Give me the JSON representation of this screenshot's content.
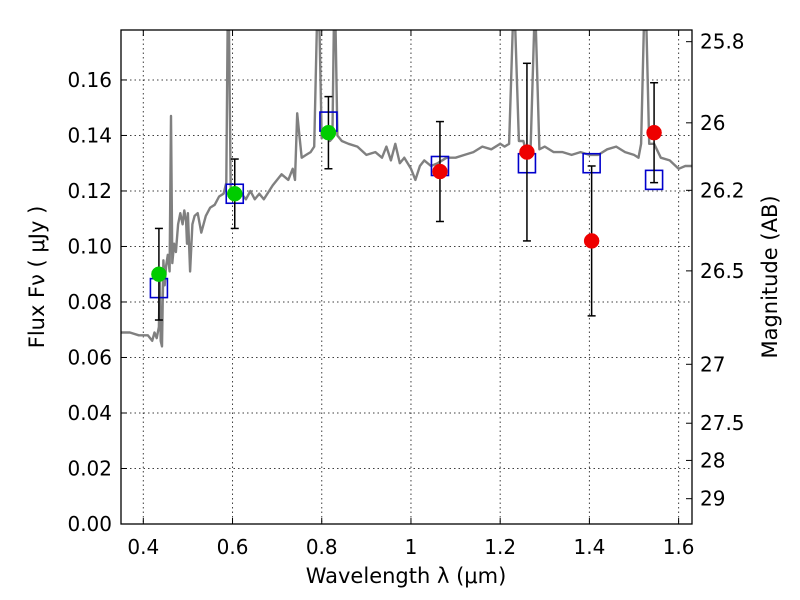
{
  "chart_data": {
    "type": "scatter",
    "x_axis": {
      "label": "Wavelength  λ (μm)",
      "lim": [
        0.35,
        1.63
      ],
      "ticks": [
        0.4,
        0.6,
        0.8,
        1.0,
        1.2,
        1.4,
        1.6
      ],
      "tick_labels": [
        "0.4",
        "0.6",
        "0.8",
        "1",
        "1.2",
        "1.4",
        "1.6"
      ]
    },
    "y_axis": {
      "label": "Flux  Fν  ( μJy )",
      "lim": [
        0.0,
        0.178
      ],
      "ticks": [
        0.0,
        0.02,
        0.04,
        0.06,
        0.08,
        0.1,
        0.12,
        0.14,
        0.16
      ],
      "tick_labels": [
        "0.00",
        "0.02",
        "0.04",
        "0.06",
        "0.08",
        "0.10",
        "0.12",
        "0.14",
        "0.16"
      ]
    },
    "y2_axis": {
      "label": "Magnitude (AB)",
      "ticks": [
        25.8,
        26,
        26.2,
        26.5,
        27,
        27.5,
        28,
        29
      ],
      "tick_labels": [
        "25.8",
        "26",
        "26.2",
        "26.5",
        "27",
        "27.5",
        "28",
        "29"
      ]
    },
    "grid": true,
    "series": [
      {
        "kind": "line",
        "color": "#808080",
        "points": [
          [
            0.35,
            0.069
          ],
          [
            0.37,
            0.069
          ],
          [
            0.39,
            0.068
          ],
          [
            0.41,
            0.068
          ],
          [
            0.42,
            0.066
          ],
          [
            0.425,
            0.069
          ],
          [
            0.43,
            0.067
          ],
          [
            0.435,
            0.071
          ],
          [
            0.437,
            0.09
          ],
          [
            0.439,
            0.066
          ],
          [
            0.442,
            0.064
          ],
          [
            0.445,
            0.095
          ],
          [
            0.448,
            0.086
          ],
          [
            0.451,
            0.093
          ],
          [
            0.455,
            0.097
          ],
          [
            0.459,
            0.091
          ],
          [
            0.462,
            0.147
          ],
          [
            0.465,
            0.094
          ],
          [
            0.469,
            0.101
          ],
          [
            0.473,
            0.098
          ],
          [
            0.478,
            0.108
          ],
          [
            0.483,
            0.112
          ],
          [
            0.488,
            0.108
          ],
          [
            0.492,
            0.113
          ],
          [
            0.496,
            0.109
          ],
          [
            0.498,
            0.101
          ],
          [
            0.5,
            0.112
          ],
          [
            0.505,
            0.091
          ],
          [
            0.51,
            0.108
          ],
          [
            0.515,
            0.111
          ],
          [
            0.522,
            0.112
          ],
          [
            0.53,
            0.105
          ],
          [
            0.54,
            0.111
          ],
          [
            0.55,
            0.114
          ],
          [
            0.56,
            0.115
          ],
          [
            0.57,
            0.118
          ],
          [
            0.58,
            0.119
          ],
          [
            0.586,
            0.123
          ],
          [
            0.589,
            0.178
          ],
          [
            0.592,
            0.178
          ],
          [
            0.596,
            0.121
          ],
          [
            0.602,
            0.119
          ],
          [
            0.61,
            0.121
          ],
          [
            0.62,
            0.119
          ],
          [
            0.63,
            0.117
          ],
          [
            0.64,
            0.12
          ],
          [
            0.65,
            0.117
          ],
          [
            0.66,
            0.119
          ],
          [
            0.67,
            0.117
          ],
          [
            0.69,
            0.122
          ],
          [
            0.71,
            0.126
          ],
          [
            0.725,
            0.124
          ],
          [
            0.735,
            0.128
          ],
          [
            0.74,
            0.124
          ],
          [
            0.745,
            0.148
          ],
          [
            0.75,
            0.14
          ],
          [
            0.755,
            0.132
          ],
          [
            0.765,
            0.133
          ],
          [
            0.775,
            0.134
          ],
          [
            0.783,
            0.136
          ],
          [
            0.789,
            0.178
          ],
          [
            0.795,
            0.178
          ],
          [
            0.8,
            0.139
          ],
          [
            0.808,
            0.141
          ],
          [
            0.818,
            0.138
          ],
          [
            0.824,
            0.139
          ],
          [
            0.827,
            0.178
          ],
          [
            0.831,
            0.178
          ],
          [
            0.835,
            0.14
          ],
          [
            0.845,
            0.138
          ],
          [
            0.86,
            0.137
          ],
          [
            0.88,
            0.136
          ],
          [
            0.9,
            0.133
          ],
          [
            0.92,
            0.134
          ],
          [
            0.935,
            0.132
          ],
          [
            0.945,
            0.136
          ],
          [
            0.955,
            0.131
          ],
          [
            0.965,
            0.137
          ],
          [
            0.975,
            0.13
          ],
          [
            0.985,
            0.132
          ],
          [
            1.0,
            0.128
          ],
          [
            1.01,
            0.124
          ],
          [
            1.02,
            0.129
          ],
          [
            1.03,
            0.131
          ],
          [
            1.045,
            0.129
          ],
          [
            1.06,
            0.13
          ],
          [
            1.08,
            0.132
          ],
          [
            1.1,
            0.132
          ],
          [
            1.12,
            0.133
          ],
          [
            1.14,
            0.134
          ],
          [
            1.16,
            0.136
          ],
          [
            1.18,
            0.135
          ],
          [
            1.2,
            0.137
          ],
          [
            1.21,
            0.136
          ],
          [
            1.22,
            0.137
          ],
          [
            1.228,
            0.178
          ],
          [
            1.234,
            0.178
          ],
          [
            1.242,
            0.138
          ],
          [
            1.252,
            0.138
          ],
          [
            1.258,
            0.134
          ],
          [
            1.268,
            0.134
          ],
          [
            1.276,
            0.178
          ],
          [
            1.28,
            0.178
          ],
          [
            1.288,
            0.135
          ],
          [
            1.3,
            0.136
          ],
          [
            1.32,
            0.134
          ],
          [
            1.34,
            0.134
          ],
          [
            1.36,
            0.133
          ],
          [
            1.38,
            0.134
          ],
          [
            1.4,
            0.133
          ],
          [
            1.42,
            0.133
          ],
          [
            1.44,
            0.135
          ],
          [
            1.46,
            0.136
          ],
          [
            1.48,
            0.134
          ],
          [
            1.5,
            0.133
          ],
          [
            1.51,
            0.132
          ],
          [
            1.516,
            0.137
          ],
          [
            1.522,
            0.178
          ],
          [
            1.528,
            0.178
          ],
          [
            1.534,
            0.137
          ],
          [
            1.545,
            0.137
          ],
          [
            1.56,
            0.132
          ],
          [
            1.58,
            0.131
          ],
          [
            1.6,
            0.128
          ],
          [
            1.615,
            0.129
          ],
          [
            1.63,
            0.129
          ]
        ]
      },
      {
        "kind": "squares",
        "color": "#0000cc",
        "points": [
          [
            0.435,
            0.085
          ],
          [
            0.605,
            0.119
          ],
          [
            0.815,
            0.145
          ],
          [
            1.065,
            0.129
          ],
          [
            1.26,
            0.13
          ],
          [
            1.405,
            0.13
          ],
          [
            1.545,
            0.124
          ]
        ]
      },
      {
        "kind": "points",
        "color": "#00cc00",
        "points": [
          {
            "x": 0.435,
            "y": 0.09,
            "err": 0.0165
          },
          {
            "x": 0.605,
            "y": 0.119,
            "err": 0.0125
          },
          {
            "x": 0.815,
            "y": 0.141,
            "err": 0.013
          }
        ]
      },
      {
        "kind": "points",
        "color": "#ee0000",
        "points": [
          {
            "x": 1.065,
            "y": 0.127,
            "err": 0.018
          },
          {
            "x": 1.26,
            "y": 0.134,
            "err": 0.032
          },
          {
            "x": 1.405,
            "y": 0.102,
            "err": 0.027
          },
          {
            "x": 1.545,
            "y": 0.141,
            "err": 0.018
          }
        ]
      }
    ]
  }
}
